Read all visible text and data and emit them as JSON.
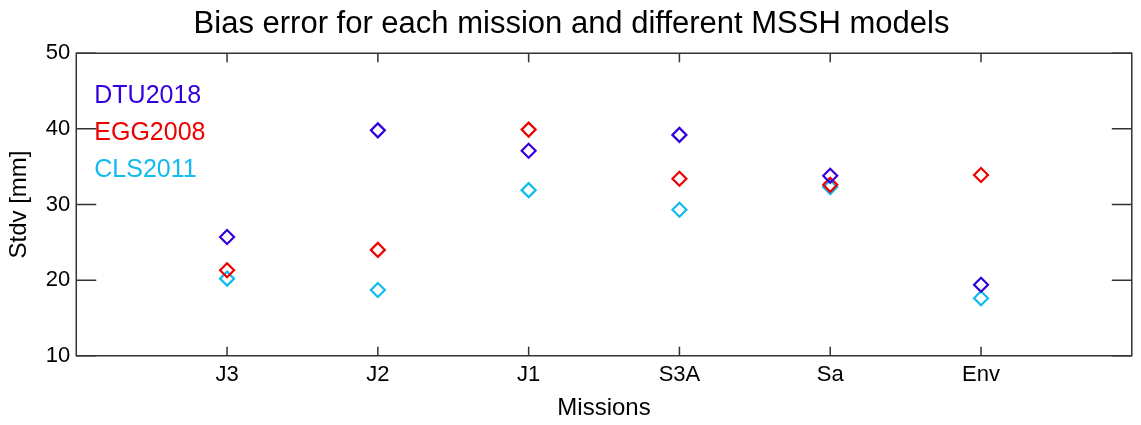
{
  "chart_data": {
    "type": "scatter",
    "title": "Bias error for each mission and different MSSH models",
    "xlabel": "Missions",
    "ylabel": "Stdv [mm]",
    "categories": [
      "J3",
      "J2",
      "J1",
      "S3A",
      "Sa",
      "Env"
    ],
    "series": [
      {
        "name": "DTU2018",
        "color": "#3300dd",
        "values": [
          25.7,
          39.8,
          37.1,
          39.2,
          33.8,
          19.4
        ]
      },
      {
        "name": "EGG2008",
        "color": "#ee0000",
        "values": [
          21.3,
          24.0,
          39.9,
          33.4,
          32.6,
          33.9
        ]
      },
      {
        "name": "CLS2011",
        "color": "#11bbee",
        "values": [
          20.2,
          18.7,
          31.9,
          29.3,
          32.3,
          17.6
        ]
      }
    ],
    "ylim": [
      10,
      50
    ],
    "yticks": [
      10,
      20,
      30,
      40,
      50
    ],
    "grid": false,
    "legend": "top left",
    "marker": "diamond"
  }
}
